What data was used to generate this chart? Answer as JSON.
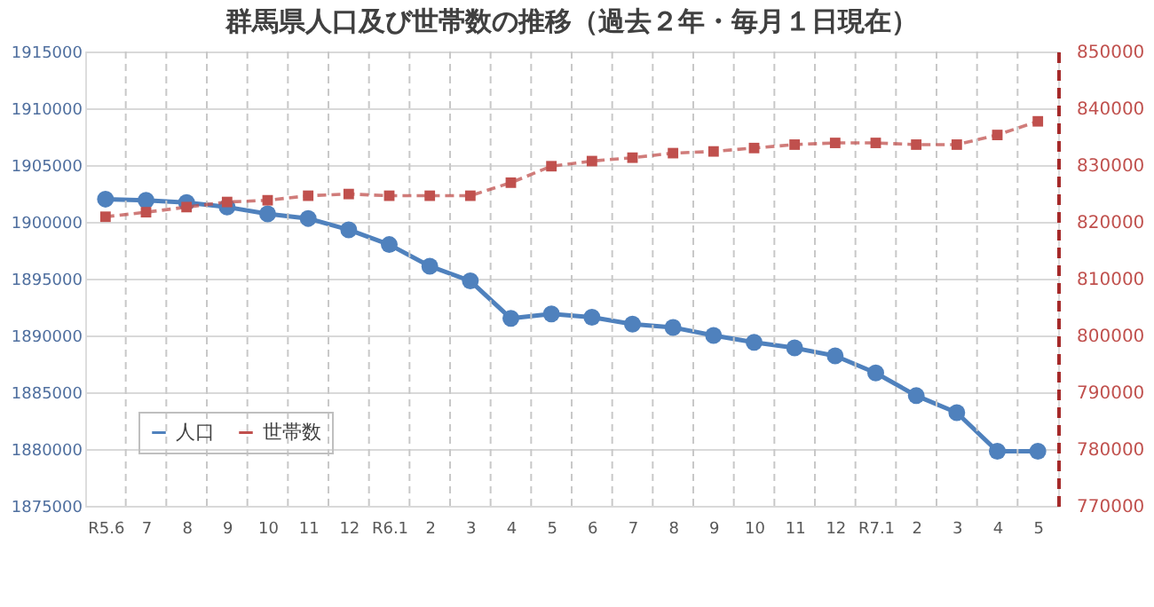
{
  "chart_data": {
    "type": "line",
    "title": "群馬県人口及び世帯数の推移（過去２年・毎月１日現在）",
    "categories": [
      "R5.6",
      "7",
      "8",
      "9",
      "10",
      "11",
      "12",
      "R6.1",
      "2",
      "3",
      "4",
      "5",
      "6",
      "7",
      "8",
      "9",
      "10",
      "11",
      "12",
      "R7.1",
      "2",
      "3",
      "4",
      "5"
    ],
    "series": [
      {
        "name": "人口",
        "color": "#4f81bd",
        "marker": "circle",
        "line_style": "solid",
        "values": [
          1902000,
          1901900,
          1901700,
          1901300,
          1900700,
          1900300,
          1899300,
          1898000,
          1896100,
          1894800,
          1891500,
          1891900,
          1891600,
          1891000,
          1890700,
          1890000,
          1889400,
          1888900,
          1888200,
          1886700,
          1884700,
          1883200,
          1879800,
          1879800
        ]
      },
      {
        "name": "世帯数",
        "color": "#c0504d",
        "marker": "square",
        "line_style": "dashed",
        "axis": "y2",
        "values": [
          820900,
          821700,
          822600,
          823500,
          823800,
          824600,
          824900,
          824600,
          824600,
          824600,
          826900,
          829800,
          830700,
          831300,
          832100,
          832400,
          833000,
          833600,
          833900,
          833900,
          833600,
          833600,
          835300,
          837700
        ]
      }
    ],
    "ylim": [
      1875000,
      1915000
    ],
    "yticks": [
      1875000,
      1880000,
      1885000,
      1890000,
      1895000,
      1900000,
      1905000,
      1910000,
      1915000
    ],
    "y2lim": [
      770000,
      850000
    ],
    "y2ticks": [
      770000,
      780000,
      790000,
      800000,
      810000,
      820000,
      830000,
      840000,
      850000
    ],
    "grid": true,
    "legend": "bottom left"
  }
}
